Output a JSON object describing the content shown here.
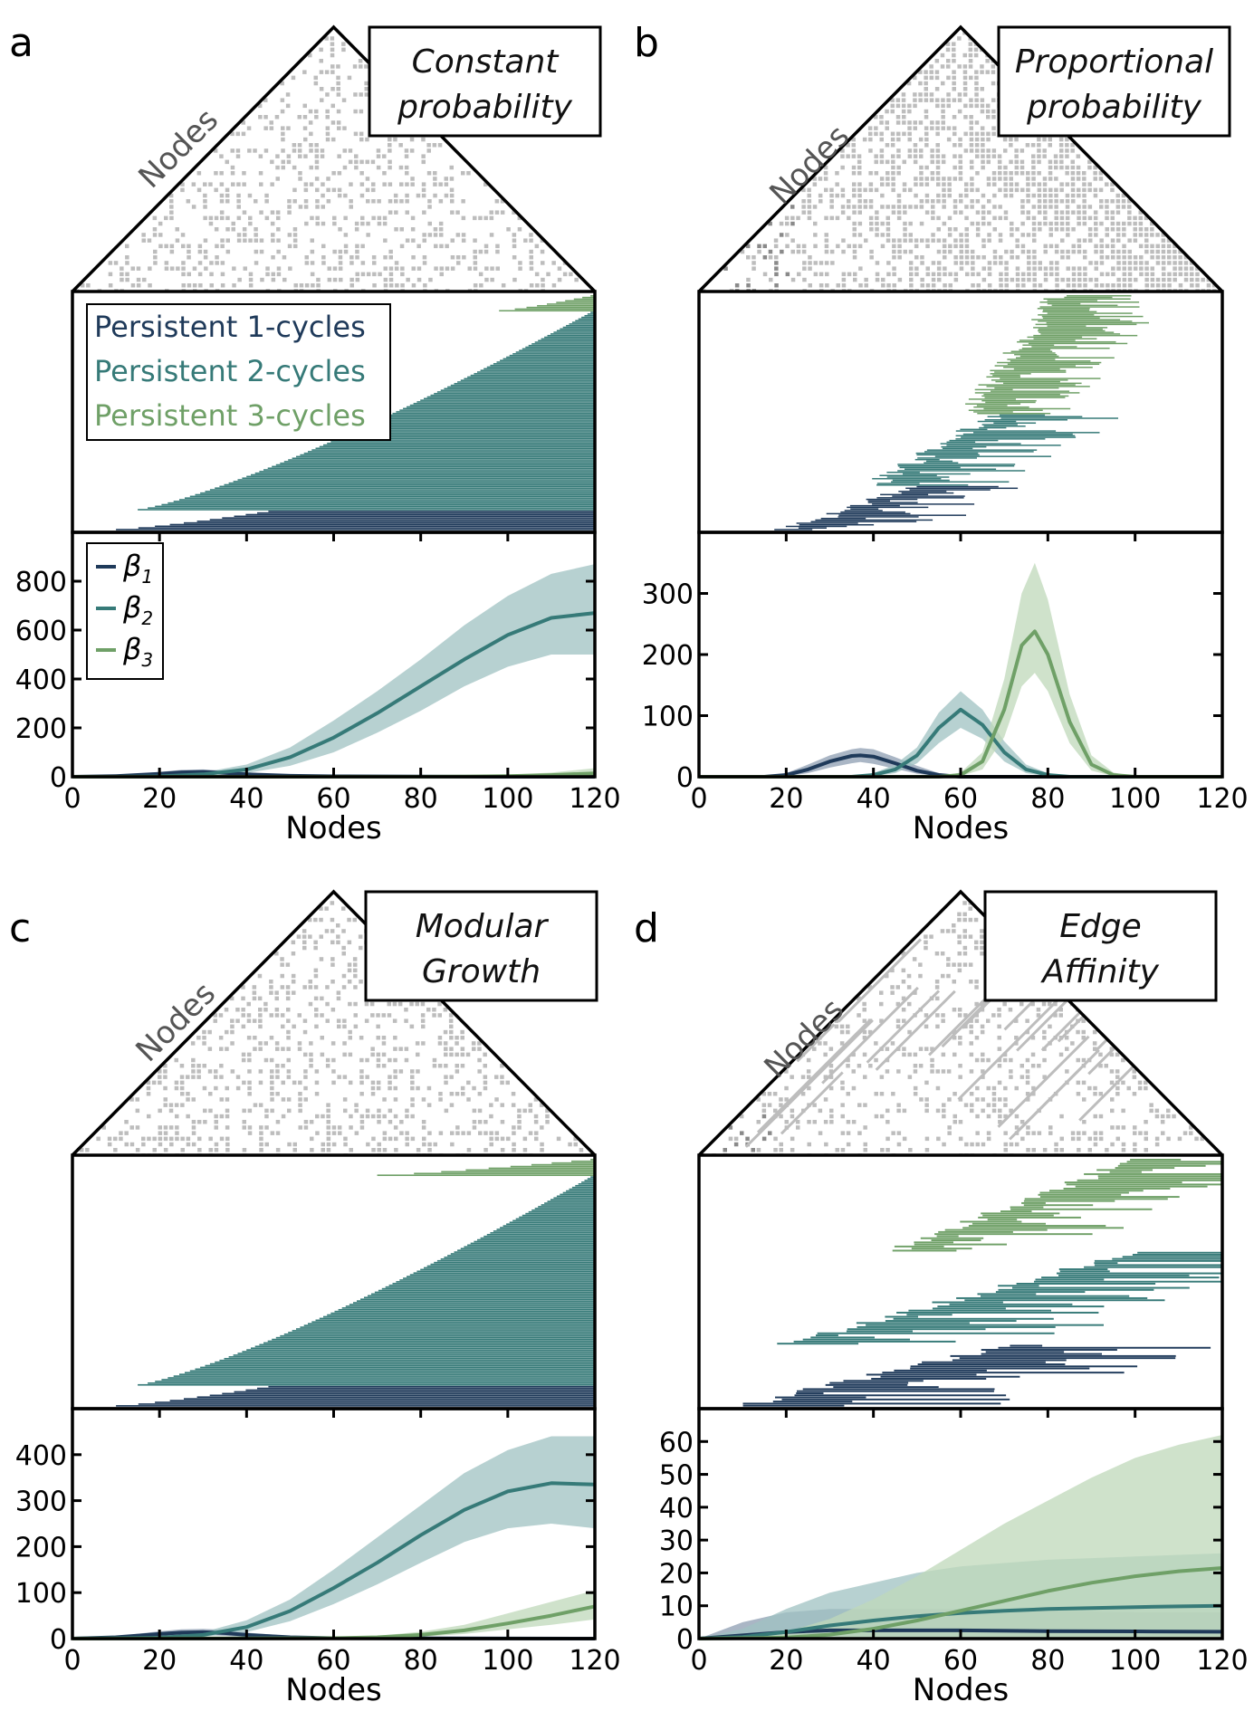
{
  "figure": {
    "colors": {
      "b1": "#1f3a5a",
      "b2": "#367a78",
      "b3": "#6fa067",
      "band_b1": "#8e9db1",
      "band_b2": "#9fc1c2",
      "band_b3": "#bfd8b9",
      "matrix_dot": "#bdbdbd",
      "matrix_dot_dark": "#8a8a8a"
    },
    "nodes_label": "Nodes",
    "barcode_legend": [
      "Persistent 1-cycles",
      "Persistent 2-cycles",
      "Persistent 3-cycles"
    ],
    "betti_legend": [
      {
        "symbol": "β",
        "sub": "1"
      },
      {
        "symbol": "β",
        "sub": "2"
      },
      {
        "symbol": "β",
        "sub": "3"
      }
    ]
  },
  "chart_data": [
    {
      "panel": "a",
      "title_lines": [
        "Constant",
        "probability"
      ],
      "type": "line",
      "xlabel": "Nodes",
      "ylabel": "",
      "xlim": [
        0,
        120
      ],
      "ylim": [
        0,
        1000
      ],
      "xticks": [
        0,
        20,
        40,
        60,
        80,
        100,
        120
      ],
      "yticks": [
        0,
        200,
        400,
        600,
        800
      ],
      "series": [
        {
          "name": "β1",
          "x": [
            0,
            10,
            20,
            25,
            30,
            35,
            40,
            50,
            60,
            80,
            100,
            120
          ],
          "y": [
            0,
            3,
            12,
            18,
            20,
            16,
            10,
            4,
            2,
            1,
            0,
            0
          ],
          "lower": [
            0,
            1,
            6,
            10,
            11,
            8,
            5,
            1,
            0,
            0,
            0,
            0
          ],
          "upper": [
            0,
            6,
            20,
            28,
            30,
            25,
            17,
            8,
            4,
            2,
            1,
            1
          ]
        },
        {
          "name": "β2",
          "x": [
            0,
            10,
            20,
            30,
            40,
            50,
            60,
            70,
            80,
            90,
            100,
            110,
            120
          ],
          "y": [
            0,
            0,
            2,
            10,
            30,
            80,
            160,
            260,
            370,
            480,
            580,
            650,
            670
          ],
          "lower": [
            0,
            0,
            1,
            5,
            15,
            45,
            100,
            180,
            270,
            370,
            450,
            500,
            500
          ],
          "upper": [
            0,
            0,
            4,
            18,
            50,
            120,
            230,
            350,
            480,
            620,
            740,
            830,
            870
          ]
        },
        {
          "name": "β3",
          "x": [
            0,
            80,
            90,
            100,
            110,
            120
          ],
          "y": [
            0,
            0,
            1,
            3,
            7,
            14
          ],
          "lower": [
            0,
            0,
            0,
            1,
            2,
            4
          ],
          "upper": [
            0,
            0,
            3,
            8,
            17,
            35
          ]
        }
      ]
    },
    {
      "panel": "b",
      "title_lines": [
        "Proportional",
        "probability"
      ],
      "type": "line",
      "xlabel": "Nodes",
      "ylabel": "",
      "xlim": [
        0,
        120
      ],
      "ylim": [
        0,
        400
      ],
      "xticks": [
        0,
        20,
        40,
        60,
        80,
        100,
        120
      ],
      "yticks": [
        0,
        100,
        200,
        300
      ],
      "series": [
        {
          "name": "β1",
          "x": [
            0,
            15,
            20,
            25,
            30,
            35,
            37,
            40,
            45,
            50,
            55,
            60,
            120
          ],
          "y": [
            0,
            0,
            3,
            12,
            25,
            34,
            35,
            33,
            22,
            10,
            3,
            0,
            0
          ],
          "lower": [
            0,
            0,
            1,
            6,
            15,
            22,
            24,
            21,
            13,
            5,
            1,
            0,
            0
          ],
          "upper": [
            0,
            0,
            6,
            20,
            35,
            45,
            47,
            45,
            32,
            18,
            6,
            1,
            0
          ]
        },
        {
          "name": "β2",
          "x": [
            0,
            35,
            40,
            45,
            50,
            55,
            60,
            65,
            70,
            75,
            80,
            85,
            120
          ],
          "y": [
            0,
            0,
            3,
            12,
            35,
            80,
            110,
            85,
            40,
            12,
            3,
            0,
            0
          ],
          "lower": [
            0,
            0,
            1,
            6,
            22,
            55,
            80,
            62,
            25,
            6,
            1,
            0,
            0
          ],
          "upper": [
            0,
            0,
            6,
            20,
            48,
            105,
            140,
            110,
            58,
            20,
            6,
            1,
            0
          ]
        },
        {
          "name": "β3",
          "x": [
            0,
            55,
            60,
            65,
            70,
            74,
            77,
            80,
            85,
            90,
            95,
            100,
            120
          ],
          "y": [
            0,
            0,
            3,
            25,
            110,
            215,
            238,
            200,
            90,
            20,
            3,
            0,
            0
          ],
          "lower": [
            0,
            0,
            1,
            12,
            65,
            148,
            170,
            140,
            55,
            10,
            1,
            0,
            0
          ],
          "upper": [
            0,
            0,
            7,
            40,
            160,
            300,
            350,
            290,
            135,
            35,
            7,
            0,
            0
          ]
        }
      ]
    },
    {
      "panel": "c",
      "title_lines": [
        "Modular",
        "Growth"
      ],
      "type": "line",
      "xlabel": "Nodes",
      "ylabel": "",
      "xlim": [
        0,
        120
      ],
      "ylim": [
        0,
        500
      ],
      "xticks": [
        0,
        20,
        40,
        60,
        80,
        100,
        120
      ],
      "yticks": [
        0,
        100,
        200,
        300,
        400
      ],
      "series": [
        {
          "name": "β1",
          "x": [
            0,
            10,
            20,
            25,
            30,
            35,
            40,
            50,
            60,
            120
          ],
          "y": [
            0,
            3,
            10,
            13,
            14,
            12,
            8,
            3,
            1,
            0
          ],
          "lower": [
            0,
            1,
            5,
            7,
            8,
            6,
            4,
            1,
            0,
            0
          ],
          "upper": [
            0,
            5,
            16,
            20,
            21,
            19,
            13,
            6,
            2,
            0
          ]
        },
        {
          "name": "β2",
          "x": [
            0,
            20,
            30,
            40,
            50,
            60,
            70,
            80,
            90,
            100,
            110,
            120
          ],
          "y": [
            0,
            2,
            8,
            25,
            60,
            110,
            165,
            225,
            280,
            320,
            338,
            335
          ],
          "lower": [
            0,
            1,
            4,
            14,
            38,
            75,
            118,
            165,
            210,
            240,
            250,
            240
          ],
          "upper": [
            0,
            4,
            14,
            40,
            85,
            150,
            220,
            290,
            360,
            410,
            440,
            440
          ]
        },
        {
          "name": "β3",
          "x": [
            0,
            60,
            70,
            80,
            90,
            100,
            110,
            120
          ],
          "y": [
            0,
            1,
            3,
            8,
            18,
            33,
            50,
            70
          ],
          "lower": [
            0,
            0,
            1,
            4,
            10,
            20,
            30,
            42
          ],
          "upper": [
            0,
            2,
            6,
            15,
            30,
            55,
            80,
            105
          ]
        }
      ]
    },
    {
      "panel": "d",
      "title_lines": [
        "Edge",
        "Affinity"
      ],
      "type": "line",
      "xlabel": "Nodes",
      "ylabel": "",
      "xlim": [
        0,
        120
      ],
      "ylim": [
        0,
        70
      ],
      "xticks": [
        0,
        20,
        40,
        60,
        80,
        100,
        120
      ],
      "yticks": [
        0,
        10,
        20,
        30,
        40,
        50,
        60
      ],
      "series": [
        {
          "name": "β1",
          "x": [
            0,
            10,
            20,
            30,
            40,
            60,
            80,
            100,
            120
          ],
          "y": [
            0,
            1,
            2,
            2.5,
            2.5,
            2.5,
            2.3,
            2.2,
            2.1
          ],
          "lower": [
            0,
            0,
            0,
            0,
            0,
            0,
            0,
            0,
            0
          ],
          "upper": [
            0,
            5,
            8,
            9,
            9,
            9,
            8.5,
            8,
            8
          ]
        },
        {
          "name": "β2",
          "x": [
            0,
            10,
            20,
            30,
            40,
            50,
            60,
            70,
            80,
            90,
            100,
            110,
            120
          ],
          "y": [
            0,
            0.5,
            2,
            4,
            5.5,
            6.8,
            7.8,
            8.5,
            9,
            9.3,
            9.6,
            9.8,
            10
          ],
          "lower": [
            0,
            0,
            0,
            0,
            0,
            0,
            0,
            0,
            0,
            0,
            0,
            0,
            0
          ],
          "upper": [
            0,
            3,
            9,
            14,
            17,
            20,
            22,
            23,
            24,
            24.5,
            25,
            25.5,
            26
          ]
        },
        {
          "name": "β3",
          "x": [
            0,
            20,
            30,
            40,
            50,
            60,
            70,
            80,
            90,
            100,
            110,
            120
          ],
          "y": [
            0,
            0.3,
            1.2,
            3,
            5.5,
            8.5,
            11.5,
            14.5,
            17,
            19,
            20.5,
            21.5
          ],
          "lower": [
            0,
            0,
            0,
            0,
            0,
            0,
            0,
            0,
            0,
            0,
            0,
            0
          ],
          "upper": [
            0,
            2,
            6,
            12,
            19,
            27,
            35,
            42,
            49,
            55,
            59,
            62
          ]
        }
      ]
    }
  ]
}
